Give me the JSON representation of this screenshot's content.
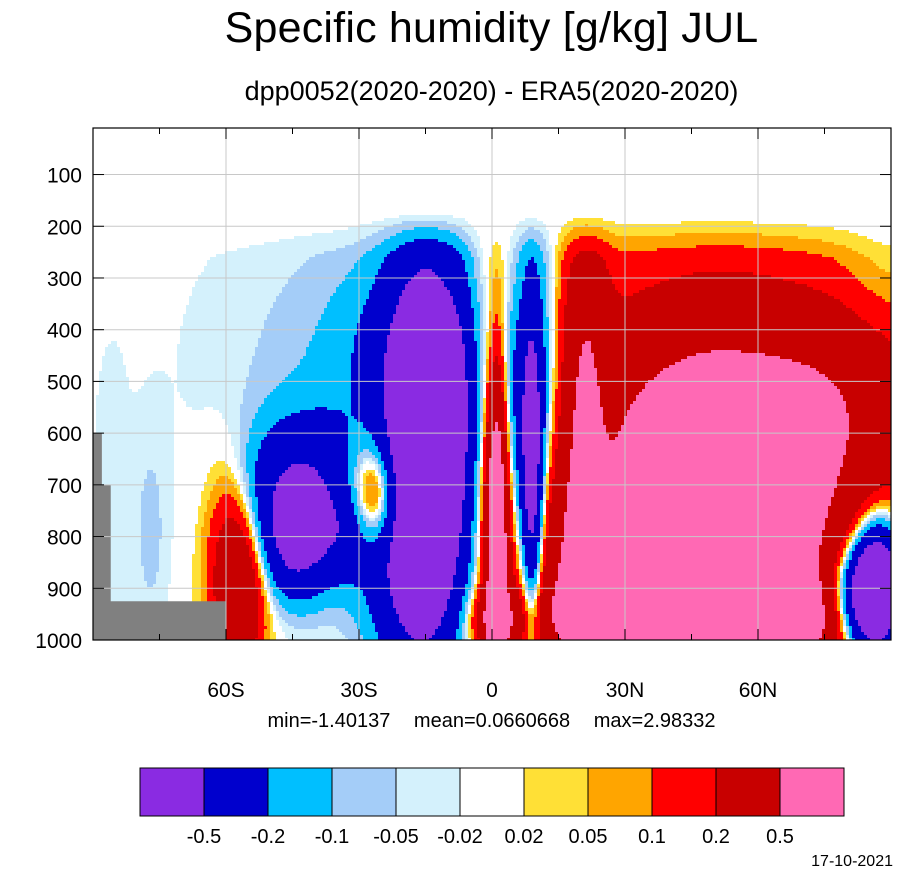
{
  "chart_data": {
    "type": "heatmap",
    "title": "Specific humidity [g/kg] JUL",
    "subtitle": "dpp0052(2020-2020) - ERA5(2020-2020)",
    "x_ticks": [
      "60S",
      "30S",
      "0",
      "30N",
      "60N"
    ],
    "x_tick_values": [
      -60,
      -30,
      0,
      30,
      60
    ],
    "xlim": [
      -90,
      90
    ],
    "y_ticks": [
      "100",
      "200",
      "300",
      "400",
      "500",
      "600",
      "700",
      "800",
      "900",
      "1000"
    ],
    "y_tick_values": [
      100,
      200,
      300,
      400,
      500,
      600,
      700,
      800,
      900,
      1000
    ],
    "ylim": [
      1000,
      10
    ],
    "grid": true,
    "stats": {
      "min": "min=-1.40137",
      "mean": "mean=0.0660668",
      "max": "max=2.98332"
    },
    "colorbar": {
      "colors": [
        "#8a2be2",
        "#0000cd",
        "#00bfff",
        "#a4cdf8",
        "#d4f1fc",
        "#ffffff",
        "#ffe036",
        "#ffa500",
        "#ff0000",
        "#c80000",
        "#ff69b4"
      ],
      "labels": [
        "-0.5",
        "-0.2",
        "-0.1",
        "-0.05",
        "-0.02",
        "0.02",
        "0.05",
        "0.1",
        "0.2",
        "0.5"
      ]
    },
    "missing_color": "#808080"
  },
  "date": "17-10-2021"
}
